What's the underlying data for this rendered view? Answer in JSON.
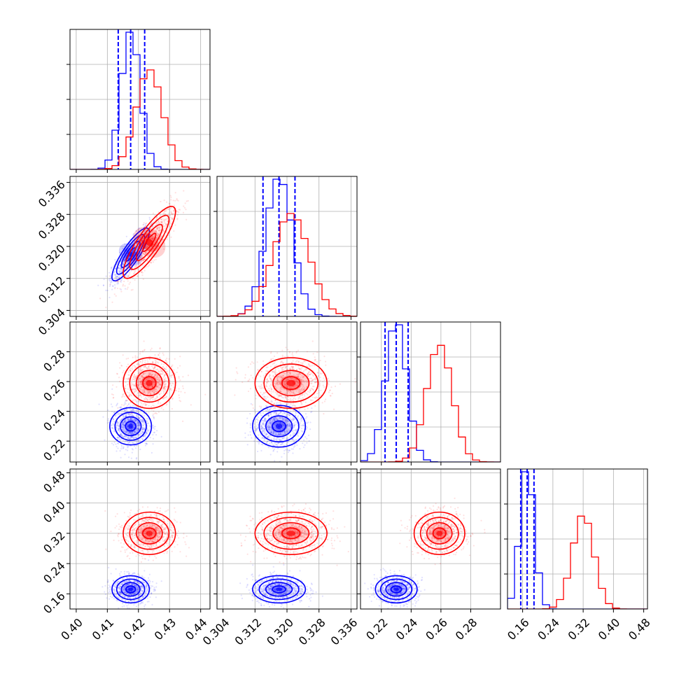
{
  "chart_data": {
    "type": "corner",
    "parameters": [
      {
        "ticks": [
          0.4,
          0.41,
          0.42,
          0.43,
          0.44
        ],
        "tick_labels": [
          "0.40",
          "0.41",
          "0.42",
          "0.43",
          "0.44"
        ],
        "range": [
          0.398,
          0.443
        ]
      },
      {
        "ticks": [
          0.304,
          0.312,
          0.32,
          0.328,
          0.336
        ],
        "tick_labels": [
          "0.304",
          "0.312",
          "0.320",
          "0.328",
          "0.336"
        ],
        "range": [
          0.3025,
          0.3375
        ]
      },
      {
        "ticks": [
          0.22,
          0.24,
          0.26,
          0.28
        ],
        "tick_labels": [
          "0.22",
          "0.24",
          "0.26",
          "0.28"
        ],
        "range": [
          0.206,
          0.3
        ]
      },
      {
        "ticks": [
          0.16,
          0.24,
          0.32,
          0.4,
          0.48
        ],
        "tick_labels": [
          "0.16",
          "0.24",
          "0.32",
          "0.40",
          "0.48"
        ],
        "range": [
          0.12,
          0.49
        ]
      }
    ],
    "series": [
      {
        "color": "#0000ff",
        "means": [
          0.4175,
          0.318,
          0.23,
          0.172
        ],
        "sigmas": [
          0.003,
          0.0033,
          0.007,
          0.018
        ],
        "quantile_lines": [
          [
            0.4135,
            0.4175,
            0.422
          ],
          [
            0.314,
            0.318,
            0.322
          ],
          [
            0.2225,
            0.23,
            0.238
          ],
          [
            0.155,
            0.172,
            0.19
          ]
        ],
        "correlations": [
          [
            1,
            0.85,
            0.0,
            0.0
          ],
          [
            0.85,
            1,
            0.0,
            0.0
          ],
          [
            0.0,
            0.0,
            1,
            0.0
          ],
          [
            0.0,
            0.0,
            0.0,
            1
          ]
        ]
      },
      {
        "color": "#ff0000",
        "means": [
          0.4235,
          0.321,
          0.259,
          0.32
        ],
        "sigmas": [
          0.0042,
          0.0045,
          0.0085,
          0.028
        ],
        "quantile_lines": [],
        "correlations": [
          [
            1,
            0.85,
            0.0,
            0.0
          ],
          [
            0.85,
            1,
            0.0,
            0.0
          ],
          [
            0.0,
            0.0,
            1,
            0.0
          ],
          [
            0.0,
            0.0,
            0.0,
            1
          ]
        ]
      }
    ],
    "grid": true,
    "contour_levels_sigma": [
      0.5,
      1.0,
      1.5,
      2.0
    ]
  }
}
